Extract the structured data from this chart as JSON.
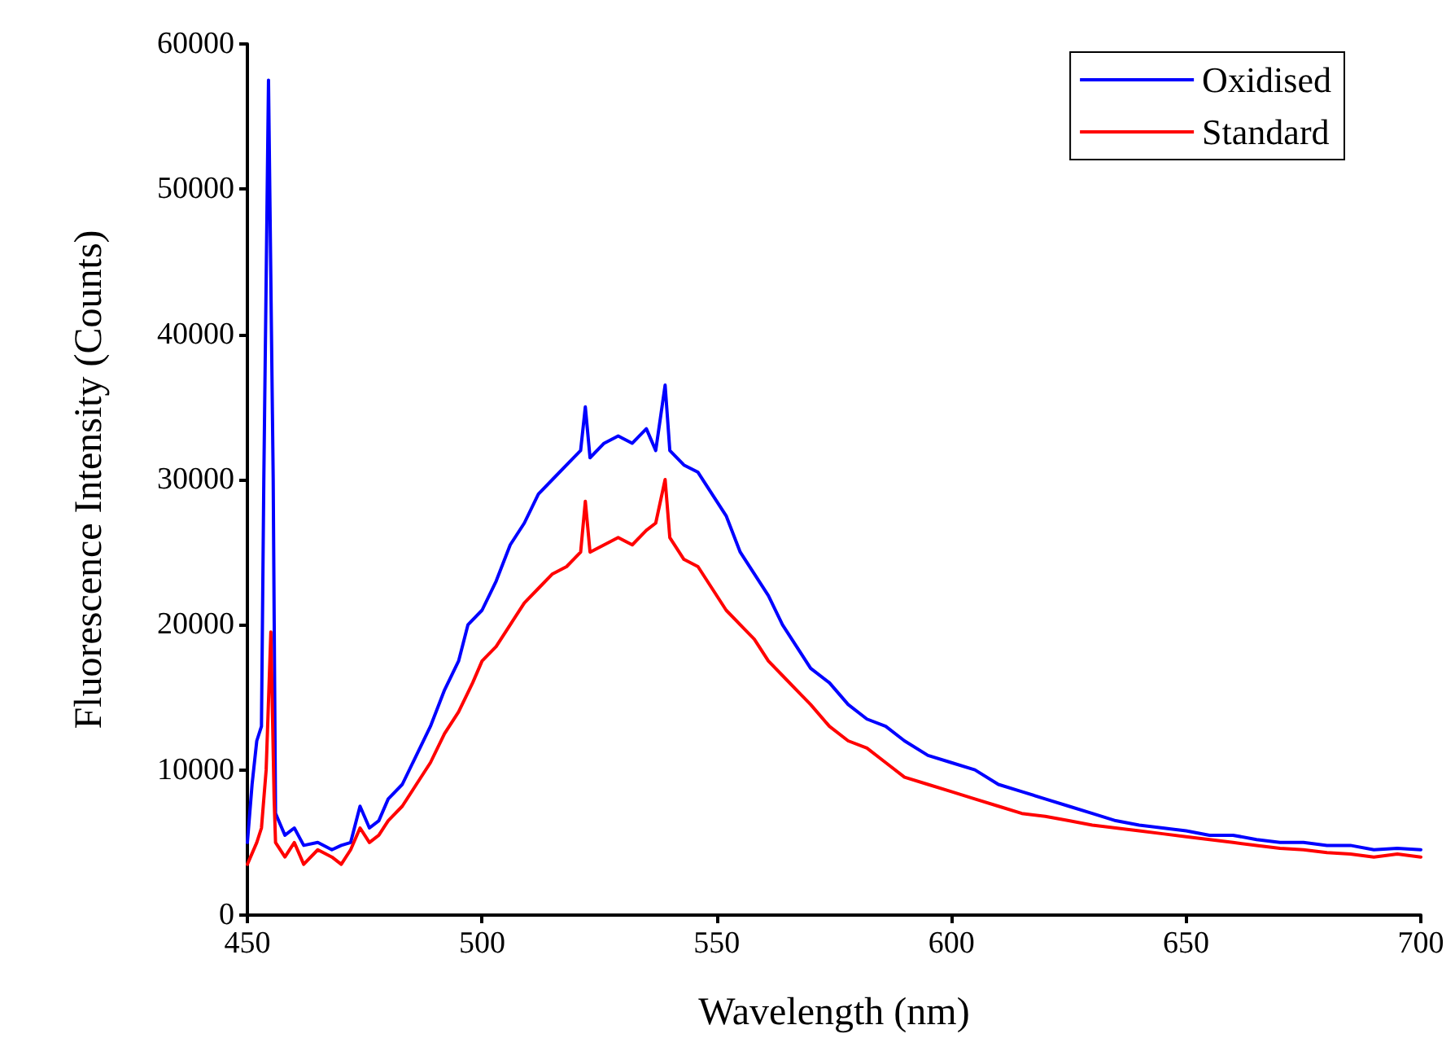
{
  "chart_data": {
    "type": "line",
    "xlabel": "Wavelength (nm)",
    "ylabel": "Fluorescence Intensity (Counts)",
    "xlim": [
      450,
      700
    ],
    "xticks": [
      450,
      500,
      550,
      600,
      650,
      700
    ],
    "ylim": [
      0,
      60000
    ],
    "yticks": [
      0,
      10000,
      20000,
      30000,
      40000,
      50000,
      60000
    ],
    "grid": false,
    "legend": "top right",
    "marker": "none",
    "line_style": "solid",
    "series": [
      {
        "name": "Oxidised",
        "color": "#0000ff",
        "x": [
          450,
          451,
          452,
          453,
          453.5,
          454.5,
          455.5,
          456,
          458,
          460,
          462,
          465,
          468,
          470,
          472,
          474,
          476,
          478,
          480,
          483,
          486,
          489,
          492,
          495,
          497,
          500,
          503,
          506,
          509,
          512,
          515,
          518,
          521,
          522,
          523,
          526,
          529,
          532,
          535,
          537,
          539,
          540,
          543,
          546,
          549,
          552,
          555,
          558,
          561,
          564,
          567,
          570,
          574,
          578,
          582,
          586,
          590,
          595,
          600,
          605,
          610,
          615,
          620,
          625,
          630,
          635,
          640,
          645,
          650,
          655,
          660,
          665,
          670,
          675,
          680,
          685,
          690,
          695,
          700
        ],
        "values": [
          5000,
          9000,
          12000,
          13000,
          30000,
          57500,
          30000,
          7000,
          5500,
          6000,
          4800,
          5000,
          4500,
          4800,
          5000,
          7500,
          6000,
          6500,
          8000,
          9000,
          11000,
          13000,
          15500,
          17500,
          20000,
          21000,
          23000,
          25500,
          27000,
          29000,
          30000,
          31000,
          32000,
          35000,
          31500,
          32500,
          33000,
          32500,
          33500,
          32000,
          36500,
          32000,
          31000,
          30500,
          29000,
          27500,
          25000,
          23500,
          22000,
          20000,
          18500,
          17000,
          16000,
          14500,
          13500,
          13000,
          12000,
          11000,
          10500,
          10000,
          9000,
          8500,
          8000,
          7500,
          7000,
          6500,
          6200,
          6000,
          5800,
          5500,
          5500,
          5200,
          5000,
          5000,
          4800,
          4800,
          4500,
          4600,
          4500
        ]
      },
      {
        "name": "Standard",
        "color": "#ff0000",
        "x": [
          450,
          452,
          453,
          454,
          455,
          455.7,
          456,
          458,
          460,
          462,
          465,
          468,
          470,
          472,
          474,
          476,
          478,
          480,
          483,
          486,
          489,
          492,
          495,
          498,
          500,
          503,
          506,
          509,
          512,
          515,
          518,
          521,
          522,
          523,
          526,
          529,
          532,
          535,
          537,
          539,
          540,
          543,
          546,
          549,
          552,
          555,
          558,
          561,
          564,
          567,
          570,
          574,
          578,
          582,
          586,
          590,
          595,
          600,
          605,
          610,
          615,
          620,
          625,
          630,
          635,
          640,
          645,
          650,
          655,
          660,
          665,
          670,
          675,
          680,
          685,
          690,
          695,
          700
        ],
        "values": [
          3500,
          5000,
          6000,
          10000,
          19500,
          8000,
          5000,
          4000,
          5000,
          3500,
          4500,
          4000,
          3500,
          4500,
          6000,
          5000,
          5500,
          6500,
          7500,
          9000,
          10500,
          12500,
          14000,
          16000,
          17500,
          18500,
          20000,
          21500,
          22500,
          23500,
          24000,
          25000,
          28500,
          25000,
          25500,
          26000,
          25500,
          26500,
          27000,
          30000,
          26000,
          24500,
          24000,
          22500,
          21000,
          20000,
          19000,
          17500,
          16500,
          15500,
          14500,
          13000,
          12000,
          11500,
          10500,
          9500,
          9000,
          8500,
          8000,
          7500,
          7000,
          6800,
          6500,
          6200,
          6000,
          5800,
          5600,
          5400,
          5200,
          5000,
          4800,
          4600,
          4500,
          4300,
          4200,
          4000,
          4200,
          4000
        ]
      }
    ]
  }
}
